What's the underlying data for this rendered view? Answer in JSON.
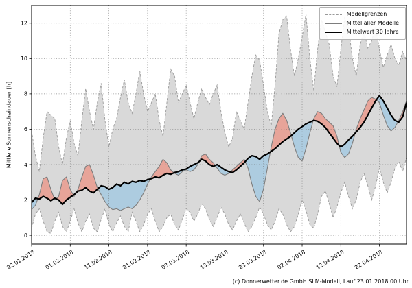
{
  "caption": "(c) Donnerwetter.de GmbH SLM-Modell, Lauf 23.01.2018 00 Uhr",
  "chart_data": {
    "type": "line",
    "title": "",
    "xlabel": "",
    "ylabel": "Mittlere Sonnenscheindauer [h]",
    "ylim": [
      -0.5,
      13
    ],
    "y_ticks": [
      0,
      2,
      4,
      6,
      8,
      10,
      12
    ],
    "x_step": "1 day",
    "x_tick_days": [
      0,
      10,
      20,
      30,
      40,
      50,
      60,
      70,
      80,
      90
    ],
    "x_ticklabels": [
      "22.01.2018",
      "01.02.2018",
      "11.02.2018",
      "21.02.2018",
      "03.03.2018",
      "13.03.2018",
      "23.03.2018",
      "02.04.2018",
      "12.04.2018",
      "22.04.2018"
    ],
    "grid": true,
    "legend": {
      "position": "top-right",
      "entries": [
        {
          "label": "Modellgrenzen",
          "style": "dashed",
          "color": "#999999"
        },
        {
          "label": "Mittel aller Modelle",
          "style": "solid",
          "color": "#7d7d7d"
        },
        {
          "label": "Mittelwert 30 Jahre",
          "style": "solid-thick",
          "color": "#000000"
        }
      ]
    },
    "colors": {
      "band": "#d9d9d9",
      "above": "#e8a094",
      "below": "#a9cbe1",
      "bounds": "#999999",
      "model": "#7d7d7d",
      "mean30": "#000000",
      "grid": "#666666"
    },
    "series": [
      {
        "name": "upper",
        "label": "Modellgrenzen (max)",
        "values": [
          5.9,
          4.5,
          3.6,
          5.5,
          7.0,
          6.8,
          6.6,
          5.0,
          4.0,
          5.5,
          6.5,
          5.2,
          4.5,
          6.5,
          8.3,
          7.0,
          6.0,
          7.5,
          8.6,
          6.5,
          5.0,
          6.0,
          6.6,
          7.8,
          8.8,
          7.5,
          6.9,
          8.0,
          9.3,
          8.0,
          7.0,
          7.5,
          8.0,
          6.5,
          5.6,
          7.5,
          9.4,
          9.0,
          7.5,
          8.0,
          8.5,
          7.5,
          6.6,
          7.5,
          8.3,
          7.8,
          7.4,
          8.0,
          8.5,
          7.0,
          5.8,
          5.0,
          5.5,
          7.0,
          6.5,
          6.0,
          7.5,
          9.0,
          10.2,
          9.9,
          8.5,
          7.0,
          6.2,
          8.5,
          11.4,
          12.2,
          12.4,
          10.5,
          9.0,
          10.0,
          11.2,
          12.5,
          10.0,
          8.2,
          10.5,
          12.2,
          11.5,
          10.8,
          9.0,
          8.4,
          10.5,
          12.3,
          11.8,
          10.0,
          9.0,
          10.8,
          11.5,
          10.6,
          11.0,
          11.8,
          10.5,
          9.5,
          10.2,
          10.8,
          10.0,
          9.6,
          10.4,
          9.9
        ]
      },
      {
        "name": "lower",
        "label": "Modellgrenzen (min)",
        "values": [
          0.4,
          1.2,
          1.5,
          0.8,
          0.2,
          0.1,
          0.8,
          1.3,
          0.5,
          0.2,
          0.8,
          1.5,
          0.7,
          0.2,
          0.8,
          1.2,
          0.4,
          0.2,
          0.9,
          1.5,
          0.6,
          0.2,
          0.7,
          1.1,
          0.5,
          0.2,
          1.3,
          0.8,
          0.2,
          0.6,
          1.2,
          1.5,
          0.8,
          0.2,
          0.5,
          1.0,
          1.2,
          0.6,
          0.3,
          0.9,
          1.5,
          1.3,
          0.8,
          1.2,
          1.8,
          1.5,
          0.9,
          0.5,
          1.0,
          1.6,
          1.2,
          0.6,
          0.3,
          0.8,
          1.2,
          0.7,
          0.2,
          0.5,
          1.0,
          1.6,
          1.2,
          0.6,
          0.3,
          0.8,
          1.5,
          1.2,
          0.6,
          0.2,
          0.5,
          1.2,
          2.0,
          1.4,
          0.6,
          0.4,
          1.2,
          2.2,
          2.5,
          1.8,
          1.0,
          1.6,
          2.4,
          3.0,
          2.2,
          1.5,
          2.0,
          3.0,
          3.5,
          2.8,
          2.0,
          2.8,
          3.8,
          3.0,
          2.4,
          3.0,
          3.8,
          4.2,
          3.6,
          4.4
        ]
      },
      {
        "name": "model_mean",
        "label": "Mittel aller Modelle",
        "values": [
          1.45,
          1.7,
          2.3,
          3.2,
          3.3,
          2.6,
          2.0,
          2.2,
          3.1,
          3.3,
          2.6,
          2.2,
          2.6,
          3.3,
          3.9,
          4.0,
          3.4,
          2.7,
          2.3,
          1.9,
          1.6,
          1.45,
          1.5,
          1.4,
          1.5,
          1.6,
          1.5,
          1.7,
          2.0,
          2.4,
          2.9,
          3.3,
          3.6,
          3.9,
          4.3,
          4.1,
          3.7,
          3.5,
          3.4,
          3.6,
          3.7,
          3.6,
          3.7,
          4.0,
          4.5,
          4.6,
          4.3,
          4.1,
          3.8,
          3.5,
          3.4,
          3.5,
          3.7,
          3.9,
          4.1,
          4.3,
          3.8,
          2.9,
          2.2,
          1.9,
          2.6,
          3.8,
          5.0,
          6.0,
          6.6,
          6.9,
          6.5,
          5.8,
          5.0,
          4.4,
          4.2,
          4.9,
          5.8,
          6.6,
          7.0,
          6.9,
          6.6,
          6.4,
          6.2,
          5.6,
          4.7,
          4.4,
          4.6,
          5.2,
          6.0,
          6.6,
          7.1,
          7.6,
          7.8,
          7.7,
          7.5,
          6.8,
          6.2,
          5.9,
          6.1,
          6.5,
          7.0,
          7.6
        ]
      },
      {
        "name": "mean30",
        "label": "Mittelwert 30 Jahre",
        "values": [
          1.85,
          2.1,
          2.05,
          2.2,
          2.1,
          1.95,
          2.1,
          2.0,
          1.75,
          2.0,
          2.15,
          2.3,
          2.5,
          2.55,
          2.7,
          2.5,
          2.4,
          2.6,
          2.8,
          2.75,
          2.6,
          2.7,
          2.9,
          2.8,
          3.0,
          2.9,
          3.05,
          3.0,
          3.1,
          3.05,
          3.15,
          3.2,
          3.3,
          3.25,
          3.4,
          3.5,
          3.45,
          3.55,
          3.6,
          3.7,
          3.75,
          3.9,
          4.0,
          4.1,
          4.3,
          4.2,
          4.0,
          3.9,
          4.0,
          3.85,
          3.7,
          3.6,
          3.55,
          3.7,
          3.9,
          4.1,
          4.35,
          4.5,
          4.45,
          4.3,
          4.5,
          4.6,
          4.75,
          4.9,
          5.1,
          5.3,
          5.45,
          5.6,
          5.8,
          6.0,
          6.15,
          6.3,
          6.4,
          6.5,
          6.45,
          6.3,
          6.1,
          5.8,
          5.5,
          5.2,
          5.0,
          5.15,
          5.4,
          5.6,
          5.85,
          6.1,
          6.4,
          6.8,
          7.2,
          7.6,
          7.9,
          7.6,
          7.2,
          6.8,
          6.5,
          6.4,
          6.7,
          7.5
        ]
      }
    ]
  }
}
